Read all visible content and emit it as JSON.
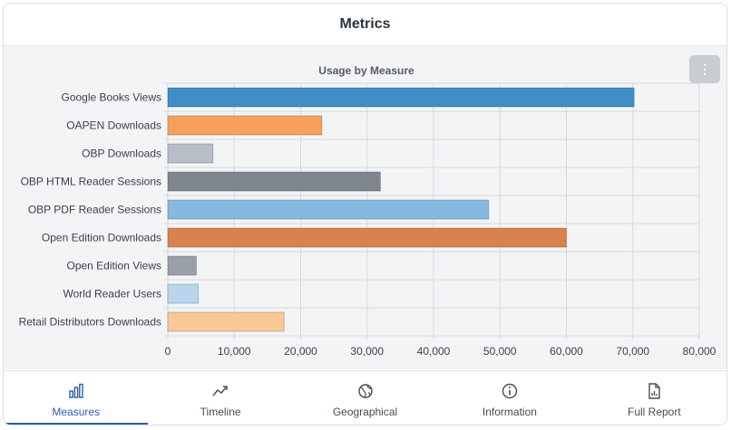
{
  "header": {
    "title": "Metrics"
  },
  "menu": {
    "glyph": "⋮"
  },
  "chart_data": {
    "type": "bar",
    "orientation": "horizontal",
    "title": "Usage by Measure",
    "categories": [
      "Google Books Views",
      "OAPEN Downloads",
      "OBP Downloads",
      "OBP HTML Reader Sessions",
      "OBP PDF Reader Sessions",
      "Open Edition Downloads",
      "Open Edition Views",
      "World Reader Users",
      "Retail Distributors Downloads"
    ],
    "values": [
      70200,
      23200,
      6800,
      32000,
      48300,
      60000,
      4300,
      4600,
      17500
    ],
    "colors": [
      "#3f8fc6",
      "#f7a05c",
      "#b8bec8",
      "#7f858f",
      "#87b8df",
      "#d8824f",
      "#9aa0aa",
      "#b9d5ee",
      "#fac896"
    ],
    "xlim": [
      0,
      80000
    ],
    "xticks": [
      0,
      10000,
      20000,
      30000,
      40000,
      50000,
      60000,
      70000,
      80000
    ],
    "xtick_labels": [
      "0",
      "10,000",
      "20,000",
      "30,000",
      "40,000",
      "50,000",
      "60,000",
      "70,000",
      "80,000"
    ],
    "grid": true
  },
  "tabs": [
    {
      "label": "Measures",
      "icon": "bar-chart-icon",
      "active": true
    },
    {
      "label": "Timeline",
      "icon": "trend-icon",
      "active": false
    },
    {
      "label": "Geographical",
      "icon": "globe-icon",
      "active": false
    },
    {
      "label": "Information",
      "icon": "info-icon",
      "active": false
    },
    {
      "label": "Full Report",
      "icon": "report-icon",
      "active": false
    }
  ]
}
